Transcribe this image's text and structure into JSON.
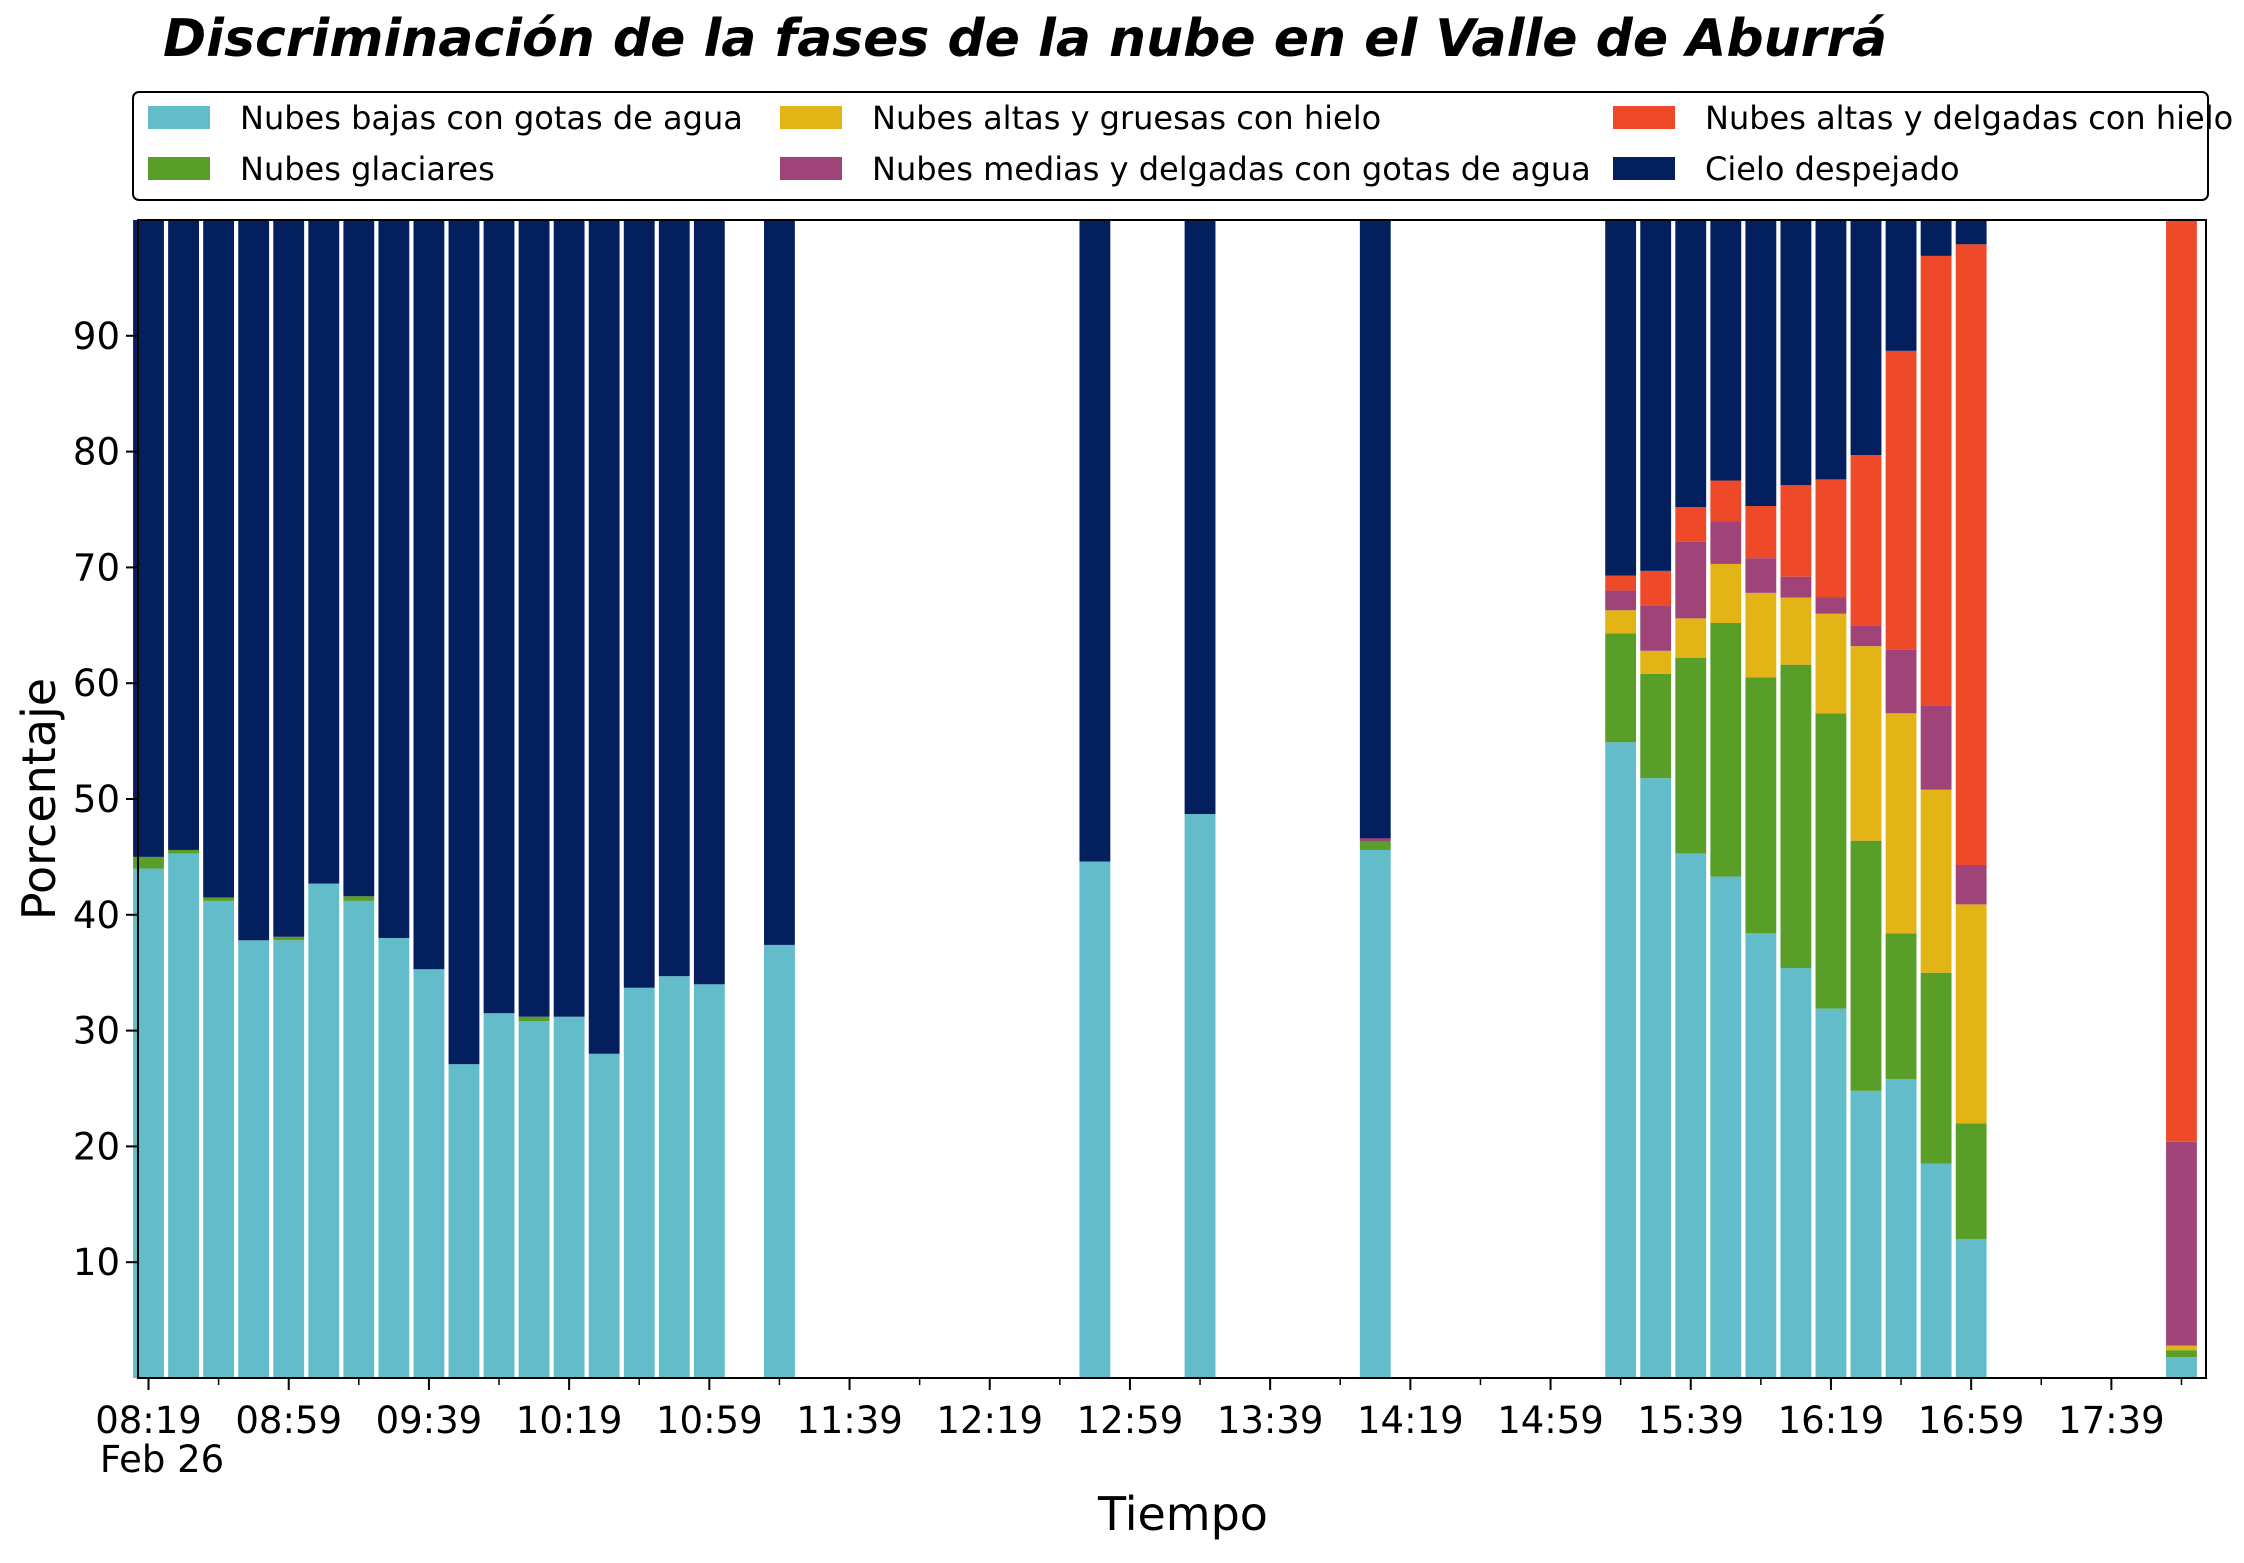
{
  "chart_data": {
    "type": "bar",
    "stacked": true,
    "title": "Discriminación de la fases de la nube en el Valle de Aburrá",
    "xlabel": "Tiempo",
    "ylabel": "Porcentaje",
    "x_date_label": "Feb 26",
    "ylim": [
      0,
      100
    ],
    "yticks": [
      10,
      20,
      30,
      40,
      50,
      60,
      70,
      80,
      90
    ],
    "xlim": [
      "08:16",
      "18:06"
    ],
    "x_major_ticks": [
      "08:19",
      "08:59",
      "09:39",
      "10:19",
      "10:59",
      "11:39",
      "12:19",
      "12:59",
      "13:39",
      "14:19",
      "14:59",
      "15:39",
      "16:19",
      "16:59",
      "17:39"
    ],
    "x_minor_ticks": [
      "08:39",
      "09:19",
      "09:59",
      "10:39",
      "11:19",
      "11:59",
      "12:39",
      "13:19",
      "13:59",
      "14:39",
      "15:19",
      "15:59",
      "16:39",
      "17:19",
      "17:59"
    ],
    "legend_position": "top (above plot, 3 columns)",
    "grid": false,
    "x": [
      "08:19",
      "08:29",
      "08:39",
      "08:49",
      "08:59",
      "09:09",
      "09:19",
      "09:29",
      "09:39",
      "09:49",
      "09:59",
      "10:09",
      "10:19",
      "10:29",
      "10:39",
      "10:49",
      "10:59",
      "11:19",
      "12:49",
      "13:19",
      "14:09",
      "15:19",
      "15:29",
      "15:39",
      "15:49",
      "15:59",
      "16:09",
      "16:19",
      "16:29",
      "16:39",
      "16:49",
      "16:59",
      "17:59"
    ],
    "series": [
      {
        "name": "Nubes bajas con gotas de agua",
        "color": "#62bcc9",
        "values": [
          44.0,
          45.3,
          41.2,
          37.8,
          37.8,
          42.7,
          41.2,
          38.0,
          35.3,
          27.1,
          31.5,
          30.8,
          31.2,
          28.0,
          33.7,
          34.7,
          34.0,
          37.4,
          44.6,
          48.7,
          45.6,
          54.9,
          51.8,
          45.3,
          43.3,
          38.4,
          35.4,
          31.9,
          24.8,
          25.8,
          18.5,
          12.0,
          1.8
        ]
      },
      {
        "name": "Nubes glaciares",
        "color": "#5a9e2a",
        "values": [
          1.0,
          0.3,
          0.3,
          0.0,
          0.3,
          0.0,
          0.4,
          0.0,
          0.0,
          0.0,
          0.0,
          0.4,
          0.0,
          0.0,
          0.0,
          0.0,
          0.0,
          0.0,
          0.0,
          0.0,
          0.7,
          9.4,
          9.0,
          16.9,
          21.9,
          22.1,
          26.2,
          25.5,
          21.6,
          12.6,
          16.5,
          10.0,
          0.6
        ]
      },
      {
        "name": "Nubes altas y gruesas con hielo",
        "color": "#e2b416",
        "values": [
          0.0,
          0.0,
          0.0,
          0.0,
          0.0,
          0.0,
          0.0,
          0.0,
          0.0,
          0.0,
          0.0,
          0.0,
          0.0,
          0.0,
          0.0,
          0.0,
          0.0,
          0.0,
          0.0,
          0.0,
          0.0,
          2.0,
          2.0,
          3.4,
          5.1,
          7.3,
          5.8,
          8.6,
          16.8,
          19.0,
          15.8,
          18.9,
          0.4
        ]
      },
      {
        "name": "Nubes medias y delgadas con gotas de agua",
        "color": "#a04379",
        "values": [
          0.0,
          0.0,
          0.0,
          0.0,
          0.0,
          0.0,
          0.0,
          0.0,
          0.0,
          0.0,
          0.0,
          0.0,
          0.0,
          0.0,
          0.0,
          0.0,
          0.0,
          0.0,
          0.0,
          0.0,
          0.3,
          1.7,
          3.9,
          6.6,
          3.7,
          3.0,
          1.8,
          1.4,
          1.8,
          5.5,
          7.3,
          3.4,
          17.6
        ]
      },
      {
        "name": "Nubes altas y delgadas con hielo",
        "color": "#ee4a2a",
        "values": [
          0.0,
          0.0,
          0.0,
          0.0,
          0.0,
          0.0,
          0.0,
          0.0,
          0.0,
          0.0,
          0.0,
          0.0,
          0.0,
          0.0,
          0.0,
          0.0,
          0.0,
          0.0,
          0.0,
          0.0,
          0.0,
          1.3,
          3.0,
          3.0,
          3.5,
          4.5,
          7.9,
          10.2,
          14.7,
          25.8,
          38.8,
          53.6,
          79.6
        ]
      },
      {
        "name": "Cielo despejado",
        "color": "#031f5e",
        "values": [
          55.0,
          54.4,
          58.5,
          62.2,
          61.9,
          57.3,
          58.4,
          62.0,
          64.7,
          72.9,
          68.5,
          68.8,
          68.8,
          72.0,
          66.3,
          65.3,
          66.0,
          62.6,
          55.4,
          51.3,
          53.4,
          30.7,
          30.3,
          24.8,
          22.5,
          24.7,
          22.9,
          22.4,
          20.3,
          11.3,
          3.1,
          2.1,
          0.0
        ]
      }
    ]
  }
}
